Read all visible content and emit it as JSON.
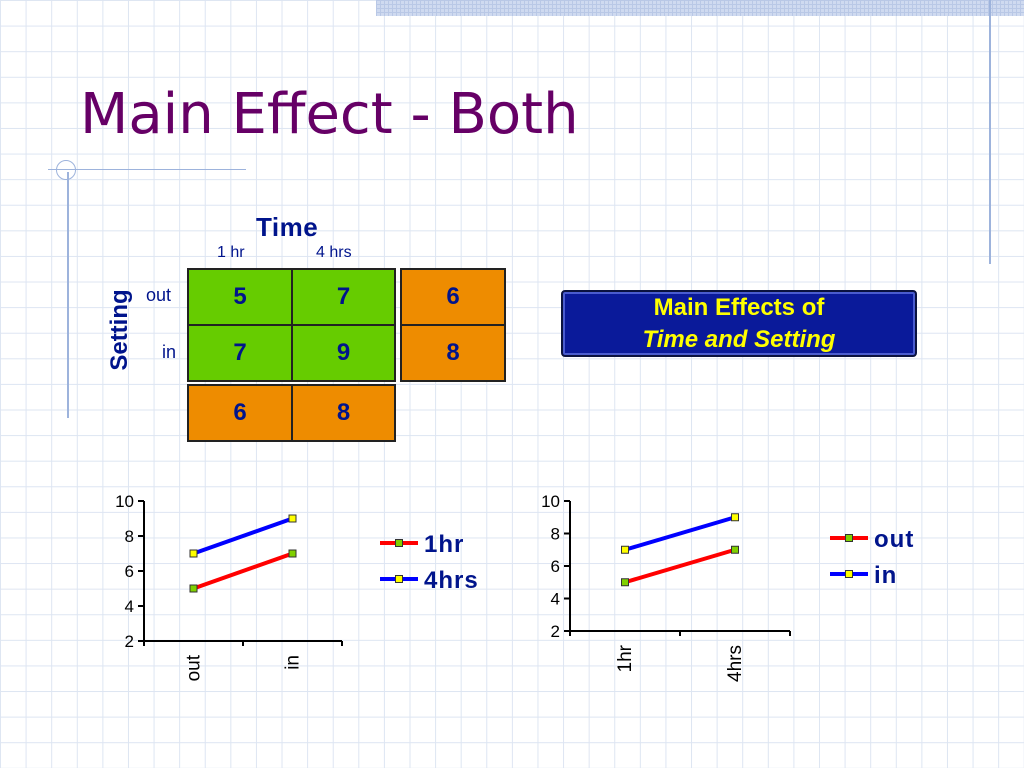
{
  "title": "Main Effect - Both",
  "table": {
    "col_factor": "Time",
    "col_levels": [
      "1 hr",
      "4 hrs"
    ],
    "row_factor": "Setting",
    "row_levels": [
      "out",
      "in"
    ],
    "cells": [
      [
        "5",
        "7"
      ],
      [
        "7",
        "9"
      ]
    ],
    "row_means": [
      "6",
      "8"
    ],
    "col_means": [
      "6",
      "8"
    ]
  },
  "effects_box": {
    "line1": "Main Effects of",
    "line2": "Time and Setting"
  },
  "colors": {
    "title": "#660066",
    "labels": "#00148c",
    "cell": "#66cc00",
    "mean": "#ee8c00",
    "red": "#ff0000",
    "blue": "#0000ff"
  },
  "chart_data": [
    {
      "type": "line",
      "categories": [
        "out",
        "in"
      ],
      "ylim": [
        2,
        10
      ],
      "yticks": [
        2,
        4,
        6,
        8,
        10
      ],
      "legend": "right",
      "series": [
        {
          "name": "1hr",
          "values": [
            5,
            7
          ],
          "color": "#ff0000",
          "marker": "#7fd000"
        },
        {
          "name": "4hrs",
          "values": [
            7,
            9
          ],
          "color": "#0000ff",
          "marker": "#ffff00"
        }
      ]
    },
    {
      "type": "line",
      "categories": [
        "1hr",
        "4hrs"
      ],
      "ylim": [
        2,
        10
      ],
      "yticks": [
        2,
        4,
        6,
        8,
        10
      ],
      "legend": "right",
      "series": [
        {
          "name": "out",
          "values": [
            5,
            7
          ],
          "color": "#ff0000",
          "marker": "#7fd000"
        },
        {
          "name": "in",
          "values": [
            7,
            9
          ],
          "color": "#0000ff",
          "marker": "#ffff00"
        }
      ]
    }
  ]
}
